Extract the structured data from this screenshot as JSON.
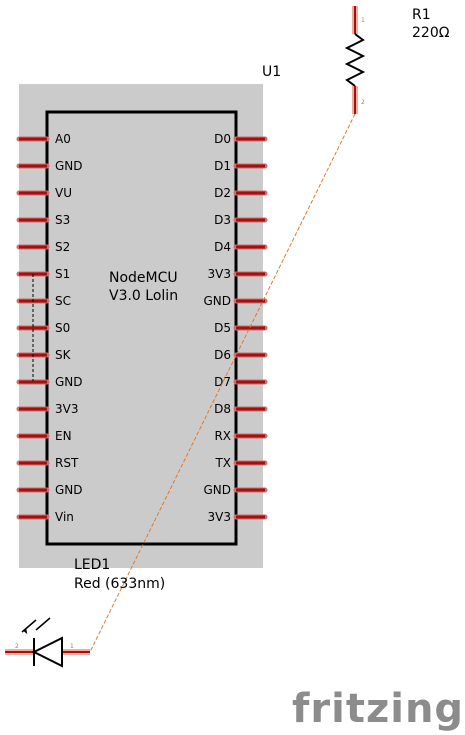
{
  "component": {
    "ref": "U1",
    "name_line1": "NodeMCU",
    "name_line2": "V3.0 Lolin",
    "left_pins": [
      "A0",
      "GND",
      "VU",
      "S3",
      "S2",
      "S1",
      "SC",
      "S0",
      "SK",
      "GND",
      "3V3",
      "EN",
      "RST",
      "GND",
      "Vin"
    ],
    "right_pins": [
      "D0",
      "D1",
      "D2",
      "D3",
      "D4",
      "3V3",
      "GND",
      "D5",
      "D6",
      "D7",
      "D8",
      "RX",
      "TX",
      "GND",
      "3V3"
    ]
  },
  "resistor": {
    "ref": "R1",
    "value": "220Ω",
    "pin_top": "1",
    "pin_bottom": "2"
  },
  "led": {
    "ref": "LED1",
    "value": "Red (633nm)",
    "pin_left": "2",
    "pin_right": "1"
  },
  "watermark": "fritzing",
  "colors": {
    "board_bg": "#cbcbcb",
    "pin": "#9c1313",
    "pin_highlight": "#f5a99a",
    "wire": "#e07a2c",
    "logo": "#8c8c8c"
  }
}
